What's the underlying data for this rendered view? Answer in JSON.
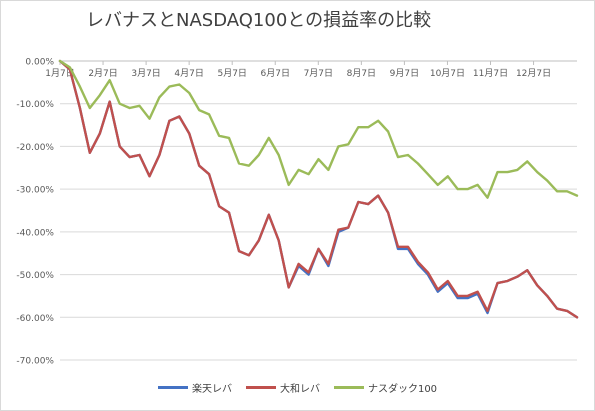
{
  "chart_data": {
    "type": "line",
    "title": "レバナスとNASDAQ100との損益率の比較",
    "xlabel": "",
    "ylabel": "",
    "ylim": [
      -0.7,
      0.0
    ],
    "yticks": [
      "0.00%",
      "-10.00%",
      "-20.00%",
      "-30.00%",
      "-40.00%",
      "-50.00%",
      "-60.00%",
      "-70.00%"
    ],
    "xticks": [
      "1月7日",
      "2月7日",
      "3月7日",
      "4月7日",
      "5月7日",
      "6月7日",
      "7月7日",
      "8月7日",
      "9月7日",
      "10月7日",
      "11月7日",
      "12月7日"
    ],
    "grid": true,
    "legend_position": "bottom",
    "series": [
      {
        "name": "楽天レバ",
        "color": "#4472c4",
        "values": [
          0.0,
          -0.02,
          -0.11,
          -0.215,
          -0.17,
          -0.095,
          -0.2,
          -0.225,
          -0.22,
          -0.27,
          -0.22,
          -0.14,
          -0.13,
          -0.17,
          -0.245,
          -0.265,
          -0.34,
          -0.355,
          -0.445,
          -0.455,
          -0.42,
          -0.36,
          -0.42,
          -0.53,
          -0.48,
          -0.5,
          -0.44,
          -0.48,
          -0.4,
          -0.39,
          -0.33,
          -0.335,
          -0.315,
          -0.355,
          -0.44,
          -0.44,
          -0.475,
          -0.5,
          -0.54,
          -0.52,
          -0.555,
          -0.555,
          -0.545,
          -0.59,
          -0.52,
          -0.515,
          -0.505,
          -0.49,
          -0.525,
          -0.55,
          -0.58,
          -0.585,
          -0.6
        ]
      },
      {
        "name": "大和レバ",
        "color": "#c0504d",
        "values": [
          0.0,
          -0.02,
          -0.11,
          -0.215,
          -0.17,
          -0.095,
          -0.2,
          -0.225,
          -0.22,
          -0.27,
          -0.22,
          -0.14,
          -0.13,
          -0.17,
          -0.245,
          -0.265,
          -0.34,
          -0.355,
          -0.445,
          -0.455,
          -0.42,
          -0.36,
          -0.42,
          -0.53,
          -0.475,
          -0.495,
          -0.44,
          -0.475,
          -0.395,
          -0.39,
          -0.33,
          -0.335,
          -0.315,
          -0.355,
          -0.435,
          -0.435,
          -0.47,
          -0.495,
          -0.535,
          -0.515,
          -0.55,
          -0.55,
          -0.54,
          -0.585,
          -0.52,
          -0.515,
          -0.505,
          -0.49,
          -0.525,
          -0.55,
          -0.58,
          -0.585,
          -0.6
        ]
      },
      {
        "name": "ナスダック100",
        "color": "#9bbb59",
        "values": [
          0.0,
          -0.015,
          -0.06,
          -0.11,
          -0.08,
          -0.045,
          -0.1,
          -0.11,
          -0.105,
          -0.135,
          -0.085,
          -0.06,
          -0.055,
          -0.075,
          -0.115,
          -0.125,
          -0.175,
          -0.18,
          -0.24,
          -0.245,
          -0.22,
          -0.18,
          -0.22,
          -0.29,
          -0.255,
          -0.265,
          -0.23,
          -0.255,
          -0.2,
          -0.195,
          -0.155,
          -0.155,
          -0.14,
          -0.165,
          -0.225,
          -0.22,
          -0.24,
          -0.265,
          -0.29,
          -0.27,
          -0.3,
          -0.3,
          -0.29,
          -0.32,
          -0.26,
          -0.26,
          -0.255,
          -0.235,
          -0.26,
          -0.28,
          -0.305,
          -0.305,
          -0.315
        ]
      }
    ]
  }
}
